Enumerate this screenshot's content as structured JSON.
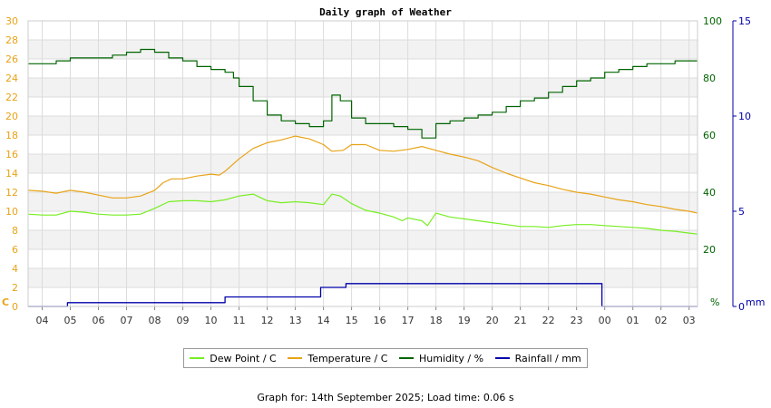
{
  "chart_data": {
    "type": "line",
    "title": "Daily graph of Weather",
    "x_ticks": [
      "04",
      "05",
      "06",
      "07",
      "08",
      "09",
      "10",
      "11",
      "12",
      "13",
      "14",
      "15",
      "16",
      "17",
      "18",
      "19",
      "20",
      "21",
      "22",
      "23",
      "00",
      "01",
      "02",
      "03"
    ],
    "left_axis": {
      "label": "C",
      "range": [
        0,
        30
      ],
      "ticks": [
        0,
        2,
        4,
        6,
        8,
        10,
        12,
        14,
        16,
        18,
        20,
        22,
        24,
        26,
        28,
        30
      ],
      "color": "#e8a317"
    },
    "humidity_axis": {
      "label": "%",
      "range": [
        0,
        100
      ],
      "ticks": [
        20,
        40,
        60,
        80,
        100
      ],
      "color": "#006400"
    },
    "rain_axis": {
      "label": "mm",
      "range": [
        0,
        15
      ],
      "ticks": [
        0,
        5,
        10,
        15
      ],
      "color": "#0000aa"
    },
    "x_range_hours": [
      3.5,
      27.3
    ],
    "grid": true,
    "legend_position": "bottom",
    "series": [
      {
        "name": "Dew Point / C",
        "axis": "left",
        "color": "#77ee22",
        "points": [
          [
            3.5,
            9.7
          ],
          [
            4.0,
            9.6
          ],
          [
            4.5,
            9.6
          ],
          [
            5.0,
            10.0
          ],
          [
            5.5,
            9.9
          ],
          [
            6.0,
            9.7
          ],
          [
            6.5,
            9.6
          ],
          [
            7.0,
            9.6
          ],
          [
            7.5,
            9.7
          ],
          [
            8.0,
            10.3
          ],
          [
            8.5,
            11.0
          ],
          [
            9.0,
            11.1
          ],
          [
            9.5,
            11.1
          ],
          [
            10.0,
            11.0
          ],
          [
            10.5,
            11.2
          ],
          [
            11.0,
            11.6
          ],
          [
            11.5,
            11.8
          ],
          [
            12.0,
            11.1
          ],
          [
            12.5,
            10.9
          ],
          [
            13.0,
            11.0
          ],
          [
            13.5,
            10.9
          ],
          [
            14.0,
            10.7
          ],
          [
            14.3,
            11.8
          ],
          [
            14.6,
            11.6
          ],
          [
            15.0,
            10.8
          ],
          [
            15.5,
            10.1
          ],
          [
            16.0,
            9.8
          ],
          [
            16.5,
            9.4
          ],
          [
            16.8,
            9.0
          ],
          [
            17.0,
            9.3
          ],
          [
            17.5,
            9.0
          ],
          [
            17.7,
            8.5
          ],
          [
            18.0,
            9.8
          ],
          [
            18.5,
            9.4
          ],
          [
            19.0,
            9.2
          ],
          [
            19.5,
            9.0
          ],
          [
            20.0,
            8.8
          ],
          [
            20.5,
            8.6
          ],
          [
            21.0,
            8.4
          ],
          [
            21.5,
            8.4
          ],
          [
            22.0,
            8.3
          ],
          [
            22.5,
            8.5
          ],
          [
            23.0,
            8.6
          ],
          [
            23.5,
            8.6
          ],
          [
            24.0,
            8.5
          ],
          [
            24.5,
            8.4
          ],
          [
            25.0,
            8.3
          ],
          [
            25.5,
            8.2
          ],
          [
            26.0,
            8.0
          ],
          [
            26.5,
            7.9
          ],
          [
            27.0,
            7.7
          ],
          [
            27.3,
            7.6
          ]
        ]
      },
      {
        "name": "Temperature / C",
        "axis": "left",
        "color": "#e8a317",
        "points": [
          [
            3.5,
            12.2
          ],
          [
            4.0,
            12.1
          ],
          [
            4.5,
            11.9
          ],
          [
            5.0,
            12.2
          ],
          [
            5.5,
            12.0
          ],
          [
            6.0,
            11.7
          ],
          [
            6.5,
            11.4
          ],
          [
            7.0,
            11.4
          ],
          [
            7.5,
            11.6
          ],
          [
            8.0,
            12.2
          ],
          [
            8.3,
            13.0
          ],
          [
            8.6,
            13.4
          ],
          [
            9.0,
            13.4
          ],
          [
            9.5,
            13.7
          ],
          [
            10.0,
            13.9
          ],
          [
            10.3,
            13.8
          ],
          [
            10.5,
            14.2
          ],
          [
            11.0,
            15.5
          ],
          [
            11.5,
            16.6
          ],
          [
            12.0,
            17.2
          ],
          [
            12.5,
            17.5
          ],
          [
            13.0,
            17.9
          ],
          [
            13.5,
            17.6
          ],
          [
            14.0,
            17.0
          ],
          [
            14.3,
            16.3
          ],
          [
            14.7,
            16.4
          ],
          [
            15.0,
            17.0
          ],
          [
            15.5,
            17.0
          ],
          [
            16.0,
            16.4
          ],
          [
            16.5,
            16.3
          ],
          [
            17.0,
            16.5
          ],
          [
            17.5,
            16.8
          ],
          [
            18.0,
            16.4
          ],
          [
            18.5,
            16.0
          ],
          [
            19.0,
            15.7
          ],
          [
            19.5,
            15.3
          ],
          [
            20.0,
            14.6
          ],
          [
            20.5,
            14.0
          ],
          [
            21.0,
            13.5
          ],
          [
            21.5,
            13.0
          ],
          [
            22.0,
            12.7
          ],
          [
            22.5,
            12.3
          ],
          [
            23.0,
            12.0
          ],
          [
            23.5,
            11.8
          ],
          [
            24.0,
            11.5
          ],
          [
            24.5,
            11.2
          ],
          [
            25.0,
            11.0
          ],
          [
            25.5,
            10.7
          ],
          [
            26.0,
            10.5
          ],
          [
            26.5,
            10.2
          ],
          [
            27.0,
            10.0
          ],
          [
            27.3,
            9.8
          ]
        ]
      },
      {
        "name": "Humidity / %",
        "axis": "humidity",
        "color": "#006400",
        "points": [
          [
            3.5,
            85
          ],
          [
            4.5,
            86
          ],
          [
            5.0,
            87
          ],
          [
            6.0,
            87
          ],
          [
            6.5,
            88
          ],
          [
            7.0,
            89
          ],
          [
            7.5,
            90
          ],
          [
            8.0,
            89
          ],
          [
            8.5,
            87
          ],
          [
            9.0,
            86
          ],
          [
            9.5,
            84
          ],
          [
            10.0,
            83
          ],
          [
            10.5,
            82
          ],
          [
            10.8,
            80
          ],
          [
            11.0,
            77
          ],
          [
            11.5,
            72
          ],
          [
            12.0,
            67
          ],
          [
            12.5,
            65
          ],
          [
            13.0,
            64
          ],
          [
            13.5,
            63
          ],
          [
            14.0,
            65
          ],
          [
            14.3,
            74
          ],
          [
            14.6,
            72
          ],
          [
            15.0,
            66
          ],
          [
            15.5,
            64
          ],
          [
            16.0,
            64
          ],
          [
            16.5,
            63
          ],
          [
            17.0,
            62
          ],
          [
            17.5,
            59
          ],
          [
            18.0,
            64
          ],
          [
            18.5,
            65
          ],
          [
            19.0,
            66
          ],
          [
            19.5,
            67
          ],
          [
            20.0,
            68
          ],
          [
            20.5,
            70
          ],
          [
            21.0,
            72
          ],
          [
            21.5,
            73
          ],
          [
            22.0,
            75
          ],
          [
            22.5,
            77
          ],
          [
            23.0,
            79
          ],
          [
            23.5,
            80
          ],
          [
            24.0,
            82
          ],
          [
            24.5,
            83
          ],
          [
            25.0,
            84
          ],
          [
            25.5,
            85
          ],
          [
            26.0,
            85
          ],
          [
            26.5,
            86
          ],
          [
            27.0,
            86
          ],
          [
            27.3,
            86
          ]
        ]
      },
      {
        "name": "Rainfall / mm",
        "axis": "rain",
        "color": "#0000aa",
        "points": [
          [
            3.5,
            0
          ],
          [
            4.9,
            0
          ],
          [
            4.9,
            0.2
          ],
          [
            10.5,
            0.2
          ],
          [
            10.5,
            0.5
          ],
          [
            13.9,
            0.5
          ],
          [
            13.9,
            1.0
          ],
          [
            14.8,
            1.0
          ],
          [
            14.8,
            1.2
          ],
          [
            23.9,
            1.2
          ],
          [
            23.9,
            0
          ],
          [
            27.3,
            0
          ]
        ]
      }
    ]
  },
  "footer": "Graph for: 14th September 2025; Load time: 0.06 s"
}
